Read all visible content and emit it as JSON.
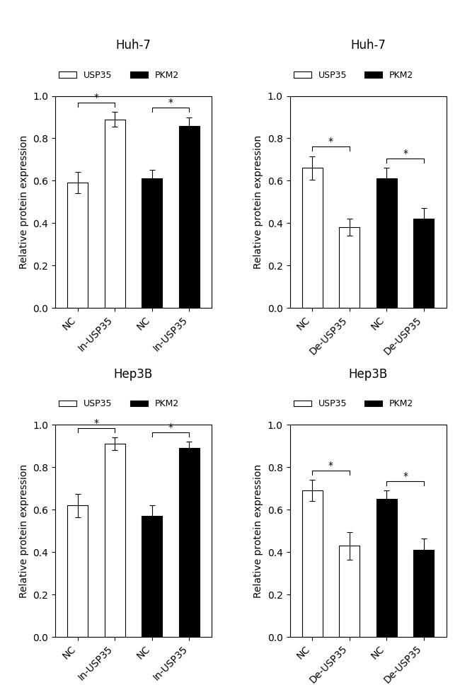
{
  "chart_data": [
    {
      "type": "bar",
      "title": "Huh-7",
      "categories": [
        "NC",
        "In-USP35",
        "NC",
        "In-USP35"
      ],
      "series": [
        {
          "name": "USP35",
          "color": "white",
          "values": [
            0.59,
            0.89,
            null,
            null
          ],
          "errors": [
            0.05,
            0.035,
            null,
            null
          ]
        },
        {
          "name": "PKM2",
          "color": "black",
          "values": [
            null,
            null,
            0.61,
            0.86
          ],
          "errors": [
            null,
            null,
            0.04,
            0.04
          ]
        }
      ],
      "annotations": [
        {
          "text": "*",
          "from": 0,
          "to": 1
        },
        {
          "text": "*",
          "from": 2,
          "to": 3
        }
      ],
      "y_label": "Relative protein expression",
      "ylim": [
        0,
        1.0
      ],
      "yticks": [
        0.0,
        0.2,
        0.4,
        0.6,
        0.8,
        1.0
      ],
      "legend": "upper left",
      "grid": false
    },
    {
      "type": "bar",
      "title": "Huh-7",
      "categories": [
        "NC",
        "De-USP35",
        "NC",
        "De-USP35"
      ],
      "series": [
        {
          "name": "USP35",
          "color": "white",
          "values": [
            0.66,
            0.38,
            null,
            null
          ],
          "errors": [
            0.055,
            0.04,
            null,
            null
          ]
        },
        {
          "name": "PKM2",
          "color": "black",
          "values": [
            null,
            null,
            0.61,
            0.42
          ],
          "errors": [
            null,
            null,
            0.05,
            0.05
          ]
        }
      ],
      "annotations": [
        {
          "text": "*",
          "from": 0,
          "to": 1
        },
        {
          "text": "*",
          "from": 2,
          "to": 3
        }
      ],
      "y_label": "Relative protein expression",
      "ylim": [
        0,
        1.0
      ],
      "yticks": [
        0.0,
        0.2,
        0.4,
        0.6,
        0.8,
        1.0
      ],
      "legend": "upper left",
      "grid": false
    },
    {
      "type": "bar",
      "title": "Hep3B",
      "categories": [
        "NC",
        "In-USP35",
        "NC",
        "In-USP35"
      ],
      "series": [
        {
          "name": "USP35",
          "color": "white",
          "values": [
            0.62,
            0.91,
            null,
            null
          ],
          "errors": [
            0.055,
            0.03,
            null,
            null
          ]
        },
        {
          "name": "PKM2",
          "color": "black",
          "values": [
            null,
            null,
            0.57,
            0.89
          ],
          "errors": [
            null,
            null,
            0.05,
            0.03
          ]
        }
      ],
      "annotations": [
        {
          "text": "*",
          "from": 0,
          "to": 1
        },
        {
          "text": "*",
          "from": 2,
          "to": 3
        }
      ],
      "y_label": "Relative protein expression",
      "ylim": [
        0,
        1.0
      ],
      "yticks": [
        0.0,
        0.2,
        0.4,
        0.6,
        0.8,
        1.0
      ],
      "legend": "upper left",
      "grid": false
    },
    {
      "type": "bar",
      "title": "Hep3B",
      "categories": [
        "NC",
        "De-USP35",
        "NC",
        "De-USP35"
      ],
      "series": [
        {
          "name": "USP35",
          "color": "white",
          "values": [
            0.69,
            0.43,
            null,
            null
          ],
          "errors": [
            0.05,
            0.065,
            null,
            null
          ]
        },
        {
          "name": "PKM2",
          "color": "black",
          "values": [
            null,
            null,
            0.65,
            0.41
          ],
          "errors": [
            null,
            null,
            0.04,
            0.055
          ]
        }
      ],
      "annotations": [
        {
          "text": "*",
          "from": 0,
          "to": 1
        },
        {
          "text": "*",
          "from": 2,
          "to": 3
        }
      ],
      "y_label": "Relative protein expression",
      "ylim": [
        0,
        1.0
      ],
      "yticks": [
        0.0,
        0.2,
        0.4,
        0.6,
        0.8,
        1.0
      ],
      "legend": "upper left",
      "grid": false
    }
  ]
}
